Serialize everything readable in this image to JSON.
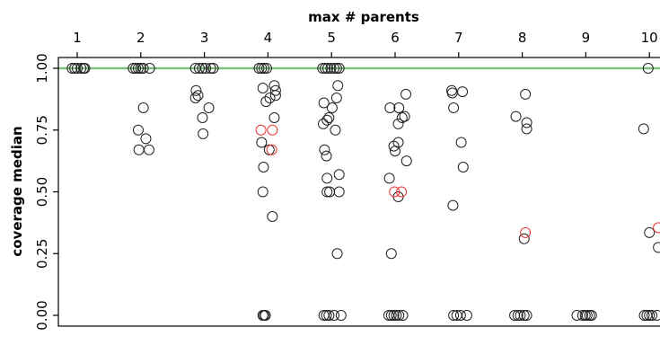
{
  "chart_data": {
    "type": "scatter",
    "title": "",
    "xlabel": "max # parents",
    "ylabel": "coverage median",
    "x_axis_position": "top",
    "x_ticks": [
      "1",
      "2",
      "3",
      "4",
      "5",
      "6",
      "7",
      "8",
      "9",
      "10"
    ],
    "xlim": [
      0.6,
      10.2
    ],
    "y_ticks": [
      "0.00",
      "0.25",
      "0.50",
      "0.75",
      "1.00"
    ],
    "ylim": [
      0.0,
      1.05
    ],
    "grid": false,
    "reference_line": {
      "y": 1.0,
      "color": "#7fbf7f"
    },
    "colors": {
      "points": "#222222",
      "highlight": "#ee3333"
    },
    "points": [
      {
        "x": 0.92,
        "y": 1.0
      },
      {
        "x": 0.96,
        "y": 1.0
      },
      {
        "x": 1.0,
        "y": 1.0
      },
      {
        "x": 1.06,
        "y": 1.0
      },
      {
        "x": 1.1,
        "y": 1.0
      },
      {
        "x": 1.12,
        "y": 1.0
      },
      {
        "x": 1.88,
        "y": 1.0
      },
      {
        "x": 1.92,
        "y": 1.0
      },
      {
        "x": 1.96,
        "y": 1.0
      },
      {
        "x": 2.0,
        "y": 1.0
      },
      {
        "x": 2.04,
        "y": 1.0
      },
      {
        "x": 2.14,
        "y": 1.0
      },
      {
        "x": 2.04,
        "y": 0.84
      },
      {
        "x": 1.96,
        "y": 0.75
      },
      {
        "x": 2.08,
        "y": 0.715
      },
      {
        "x": 1.97,
        "y": 0.67
      },
      {
        "x": 2.13,
        "y": 0.67
      },
      {
        "x": 2.86,
        "y": 1.0
      },
      {
        "x": 2.92,
        "y": 1.0
      },
      {
        "x": 2.97,
        "y": 1.0
      },
      {
        "x": 3.02,
        "y": 1.0
      },
      {
        "x": 3.1,
        "y": 1.0
      },
      {
        "x": 3.14,
        "y": 1.0
      },
      {
        "x": 2.87,
        "y": 0.91
      },
      {
        "x": 2.9,
        "y": 0.89
      },
      {
        "x": 2.86,
        "y": 0.88
      },
      {
        "x": 3.07,
        "y": 0.84
      },
      {
        "x": 2.97,
        "y": 0.8
      },
      {
        "x": 2.98,
        "y": 0.735
      },
      {
        "x": 3.86,
        "y": 1.0
      },
      {
        "x": 3.9,
        "y": 1.0
      },
      {
        "x": 3.94,
        "y": 1.0
      },
      {
        "x": 3.98,
        "y": 1.0
      },
      {
        "x": 4.1,
        "y": 0.93
      },
      {
        "x": 3.92,
        "y": 0.92
      },
      {
        "x": 4.12,
        "y": 0.91
      },
      {
        "x": 4.12,
        "y": 0.89
      },
      {
        "x": 4.03,
        "y": 0.88
      },
      {
        "x": 3.97,
        "y": 0.865
      },
      {
        "x": 4.1,
        "y": 0.8
      },
      {
        "x": 3.9,
        "y": 0.7
      },
      {
        "x": 4.02,
        "y": 0.67
      },
      {
        "x": 3.93,
        "y": 0.6
      },
      {
        "x": 3.92,
        "y": 0.5
      },
      {
        "x": 4.07,
        "y": 0.4
      },
      {
        "x": 3.89,
        "y": 0.75,
        "highlight": true
      },
      {
        "x": 4.07,
        "y": 0.75,
        "highlight": true
      },
      {
        "x": 4.06,
        "y": 0.67,
        "highlight": true
      },
      {
        "x": 3.92,
        "y": 0.0
      },
      {
        "x": 3.94,
        "y": 0.0
      },
      {
        "x": 3.96,
        "y": 0.0
      },
      {
        "x": 4.86,
        "y": 1.0
      },
      {
        "x": 4.9,
        "y": 1.0
      },
      {
        "x": 4.94,
        "y": 1.0
      },
      {
        "x": 4.99,
        "y": 1.0
      },
      {
        "x": 5.04,
        "y": 1.0
      },
      {
        "x": 5.08,
        "y": 1.0
      },
      {
        "x": 5.12,
        "y": 1.0
      },
      {
        "x": 5.1,
        "y": 0.93
      },
      {
        "x": 5.08,
        "y": 0.88
      },
      {
        "x": 4.88,
        "y": 0.86
      },
      {
        "x": 5.01,
        "y": 0.84
      },
      {
        "x": 4.96,
        "y": 0.8
      },
      {
        "x": 4.93,
        "y": 0.79
      },
      {
        "x": 4.87,
        "y": 0.775
      },
      {
        "x": 5.06,
        "y": 0.75
      },
      {
        "x": 4.89,
        "y": 0.67
      },
      {
        "x": 4.92,
        "y": 0.645
      },
      {
        "x": 5.12,
        "y": 0.57
      },
      {
        "x": 4.93,
        "y": 0.555
      },
      {
        "x": 4.93,
        "y": 0.5
      },
      {
        "x": 4.97,
        "y": 0.5
      },
      {
        "x": 5.12,
        "y": 0.5
      },
      {
        "x": 5.09,
        "y": 0.25
      },
      {
        "x": 4.88,
        "y": 0.0
      },
      {
        "x": 4.92,
        "y": 0.0
      },
      {
        "x": 4.96,
        "y": 0.0
      },
      {
        "x": 5.04,
        "y": 0.0
      },
      {
        "x": 5.15,
        "y": 0.0
      },
      {
        "x": 6.17,
        "y": 0.895
      },
      {
        "x": 5.92,
        "y": 0.84
      },
      {
        "x": 6.06,
        "y": 0.84
      },
      {
        "x": 6.15,
        "y": 0.805
      },
      {
        "x": 6.11,
        "y": 0.8
      },
      {
        "x": 6.05,
        "y": 0.775
      },
      {
        "x": 6.05,
        "y": 0.7
      },
      {
        "x": 5.98,
        "y": 0.685
      },
      {
        "x": 6.0,
        "y": 0.665
      },
      {
        "x": 6.18,
        "y": 0.625
      },
      {
        "x": 5.91,
        "y": 0.555
      },
      {
        "x": 6.05,
        "y": 0.48
      },
      {
        "x": 5.94,
        "y": 0.25
      },
      {
        "x": 5.99,
        "y": 0.5,
        "highlight": true
      },
      {
        "x": 6.1,
        "y": 0.5,
        "highlight": true
      },
      {
        "x": 5.9,
        "y": 0.0
      },
      {
        "x": 5.94,
        "y": 0.0
      },
      {
        "x": 5.98,
        "y": 0.0
      },
      {
        "x": 6.02,
        "y": 0.0
      },
      {
        "x": 6.06,
        "y": 0.0
      },
      {
        "x": 6.12,
        "y": 0.0
      },
      {
        "x": 6.89,
        "y": 0.91
      },
      {
        "x": 6.9,
        "y": 0.9
      },
      {
        "x": 7.06,
        "y": 0.905
      },
      {
        "x": 6.92,
        "y": 0.84
      },
      {
        "x": 7.04,
        "y": 0.7
      },
      {
        "x": 7.07,
        "y": 0.6
      },
      {
        "x": 6.91,
        "y": 0.445
      },
      {
        "x": 6.92,
        "y": 0.0
      },
      {
        "x": 6.97,
        "y": 0.0
      },
      {
        "x": 7.03,
        "y": 0.0
      },
      {
        "x": 7.13,
        "y": 0.0
      },
      {
        "x": 8.05,
        "y": 0.895
      },
      {
        "x": 7.9,
        "y": 0.805
      },
      {
        "x": 8.07,
        "y": 0.78
      },
      {
        "x": 8.07,
        "y": 0.755
      },
      {
        "x": 8.03,
        "y": 0.31
      },
      {
        "x": 8.05,
        "y": 0.335,
        "highlight": true
      },
      {
        "x": 7.88,
        "y": 0.0
      },
      {
        "x": 7.93,
        "y": 0.0
      },
      {
        "x": 7.97,
        "y": 0.0
      },
      {
        "x": 8.03,
        "y": 0.0
      },
      {
        "x": 8.07,
        "y": 0.0
      },
      {
        "x": 8.86,
        "y": 0.0
      },
      {
        "x": 8.95,
        "y": 0.0
      },
      {
        "x": 8.99,
        "y": 0.0
      },
      {
        "x": 9.02,
        "y": 0.0
      },
      {
        "x": 9.06,
        "y": 0.0
      },
      {
        "x": 9.09,
        "y": 0.0
      },
      {
        "x": 9.98,
        "y": 1.0
      },
      {
        "x": 9.91,
        "y": 0.755
      },
      {
        "x": 10.0,
        "y": 0.335
      },
      {
        "x": 10.14,
        "y": 0.275
      },
      {
        "x": 10.14,
        "y": 0.355,
        "highlight": true
      },
      {
        "x": 9.92,
        "y": 0.0
      },
      {
        "x": 9.96,
        "y": 0.0
      },
      {
        "x": 10.0,
        "y": 0.0
      },
      {
        "x": 10.04,
        "y": 0.0
      },
      {
        "x": 10.12,
        "y": 0.0
      }
    ]
  }
}
